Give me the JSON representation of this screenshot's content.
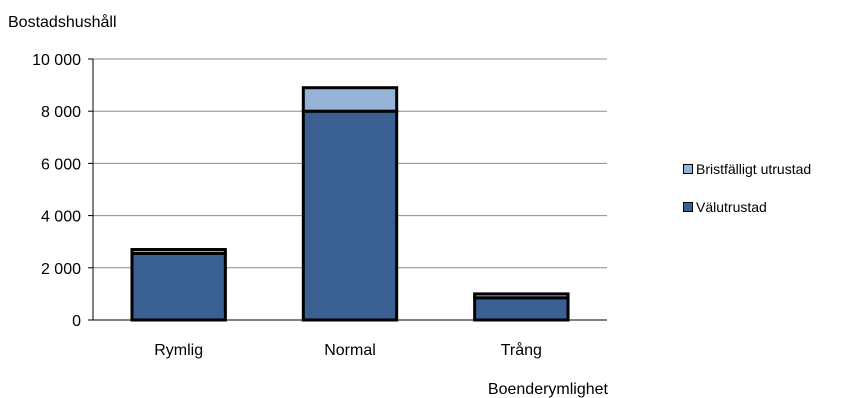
{
  "chart_data": {
    "type": "bar",
    "stacked": true,
    "title": "",
    "ylabel": "Bostadshushåll",
    "xlabel": "Boenderymlighet",
    "categories": [
      "Rymlig",
      "Normal",
      "Trång"
    ],
    "ylim": [
      0,
      10000
    ],
    "yticks": [
      0,
      2000,
      4000,
      6000,
      8000,
      10000
    ],
    "ytick_labels": [
      "0",
      "2 000",
      "4 000",
      "6 000",
      "8 000",
      "10 000"
    ],
    "grid": true,
    "legend_position": "right",
    "series": [
      {
        "name": "Välutrustad",
        "values": [
          2550,
          8000,
          850
        ],
        "color": "#3a5f93"
      },
      {
        "name": "Bristfälligt utrustad",
        "values": [
          150,
          900,
          150
        ],
        "color": "#95b3d7"
      }
    ]
  }
}
